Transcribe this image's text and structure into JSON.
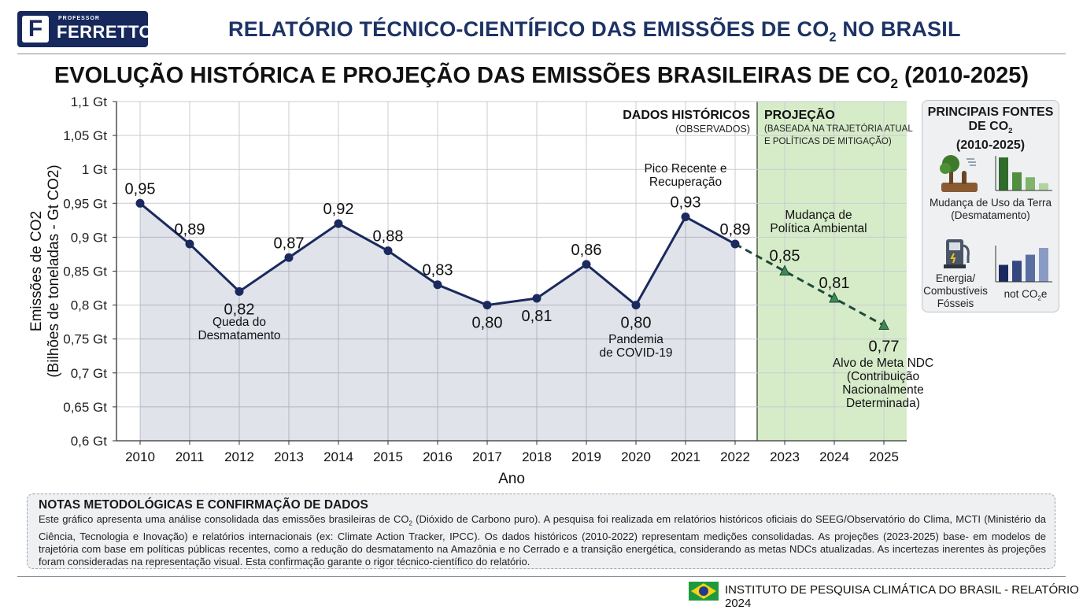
{
  "header": {
    "logo_letter": "F",
    "logo_small": "PROFESSOR",
    "logo_name": "FERRETTO",
    "title_main": "RELATÓRIO TÉCNICO-CIENTÍFICO DAS EMISSÕES DE CO",
    "title_sub": "2",
    "title_tail": " NO BRASIL"
  },
  "chart_title": {
    "main": "EVOLUÇÃO HISTÓRICA E PROJEÇÃO DAS EMISSÕES BRASILEIRAS DE CO",
    "sub": "2",
    "tail": " (2010-2025)"
  },
  "chart_data": {
    "type": "line",
    "title": "EVOLUÇÃO HISTÓRICA E PROJEÇÃO DAS EMISSÕES BRASILEIRAS DE CO2 (2010-2025)",
    "xlabel": "Ano",
    "ylabel_line1": "Emissões de CO2",
    "ylabel_line2": "(Bilhões de toneladas - Gt CO2)",
    "ylim": [
      0.6,
      1.1
    ],
    "grid": true,
    "categories": [
      "2010",
      "2011",
      "2012",
      "2013",
      "2014",
      "2015",
      "2016",
      "2017",
      "2018",
      "2019",
      "2020",
      "2021",
      "2022",
      "2023",
      "2024",
      "2025"
    ],
    "yticks": [
      {
        "v": 1.1,
        "label": "1,1 Gt"
      },
      {
        "v": 1.05,
        "label": "1,05 Gt"
      },
      {
        "v": 1.0,
        "label": "1 Gt"
      },
      {
        "v": 0.95,
        "label": "0,95 Gt"
      },
      {
        "v": 0.9,
        "label": "0,9 Gt"
      },
      {
        "v": 0.85,
        "label": "0,85 Gt"
      },
      {
        "v": 0.8,
        "label": "0,8 Gt"
      },
      {
        "v": 0.75,
        "label": "0,75 Gt"
      },
      {
        "v": 0.7,
        "label": "0,7 Gt"
      },
      {
        "v": 0.65,
        "label": "0,65 Gt"
      },
      {
        "v": 0.6,
        "label": "0,6 Gt"
      }
    ],
    "series": [
      {
        "kind": "historical",
        "x": [
          "2010",
          "2011",
          "2012",
          "2013",
          "2014",
          "2015",
          "2016",
          "2017",
          "2018",
          "2019",
          "2020",
          "2021",
          "2022"
        ],
        "values": [
          0.95,
          0.89,
          0.82,
          0.87,
          0.92,
          0.88,
          0.83,
          0.8,
          0.81,
          0.86,
          0.8,
          0.93,
          0.89
        ],
        "labels": [
          "0,95",
          "0,89",
          "0,82",
          "0,87",
          "0,92",
          "0,88",
          "0,83",
          "0,80",
          "0,81",
          "0,86",
          "0,80",
          "0,93",
          "0,89"
        ],
        "color": "#1b2a5e"
      },
      {
        "kind": "projection",
        "x": [
          "2022",
          "2023",
          "2024",
          "2025"
        ],
        "values": [
          0.89,
          0.85,
          0.81,
          0.77
        ],
        "labels": [
          "",
          "0,85",
          "0,81",
          "0,77"
        ],
        "color": "#1f4a3a"
      }
    ],
    "region_historical": {
      "title": "DADOS HISTÓRICOS",
      "subtitle": "(OBSERVADOS)"
    },
    "region_projection": {
      "title": "PROJEÇÃO",
      "subtitle_line1": "(BASEADA NA TRAJETÓRIA ATUAL",
      "subtitle_line2": "E POLÍTICAS DE MITIGAÇÃO)"
    },
    "annotations": [
      {
        "x": "2012",
        "lines": [
          "Queda do",
          "Desmatamento"
        ]
      },
      {
        "x": "2020",
        "lines": [
          "Pandemia",
          "de COVID-19"
        ]
      },
      {
        "x": "2021",
        "lines": [
          "Pico Recente e",
          "Recuperação"
        ]
      },
      {
        "x": "2023",
        "lines": [
          "Mudança de",
          "Política Ambiental"
        ]
      },
      {
        "x": "2025",
        "lines": [
          "Alvo de Meta NDC",
          "(Contribuição",
          "Nacionalmente",
          "Determinada)"
        ]
      }
    ]
  },
  "side_panel": {
    "title_line1": "PRINCIPAIS FONTES",
    "title_line2": "DE CO",
    "title_line2_sub": "2",
    "title_line3": "(2010-2025)",
    "item1_line1": "Mudança de Uso da Terra",
    "item1_line2": "(Desmatamento)",
    "item2_line1": "Energia/",
    "item2_line2": "Combustíveis",
    "item2_line3": "Fósseis",
    "item2_extra": "not CO",
    "item2_extra_sub": "2",
    "item2_extra_tail": "e",
    "bars1_heights": [
      1.0,
      0.55,
      0.4,
      0.22
    ],
    "bars2_heights": [
      0.5,
      0.62,
      0.8,
      1.0
    ],
    "color_land": "#2f6b2a",
    "color_energy": "#1b2a5e"
  },
  "notes": {
    "title": "NOTAS METODOLÓGICAS E CONFIRMAÇÃO DE DADOS",
    "body_part1": "Este gráfico apresenta uma análise consolidada das emissões brasileiras de CO",
    "body_sub": "2",
    "body_part2": " (Dióxido de Carbono puro). A pesquisa foi realizada em relatórios históricos oficiais do SEEG/Observatório do Clima, MCTI (Ministério da Ciência, Tecnologia e Inovação) e relatórios internacionais (ex: Climate Action Tracker, IPCC). Os dados históricos (2010-2022) representam medições consolidadas. As projeções (2023-2025) base- em modelos de trajetória com base em políticas públicas recentes, como a redução do desmatamento na Amazônia e no Cerrado e a transição energética, considerando as metas NDCs atualizadas. As incertezas inerentes às projeções foram consideradas na representação visual. Esta confirmação garante o rigor técnico-científico do relatório."
  },
  "footer": {
    "text": "INSTITUTO DE PESQUISA CLIMÁTICA DO BRASIL - RELATÓRIO 2024"
  }
}
